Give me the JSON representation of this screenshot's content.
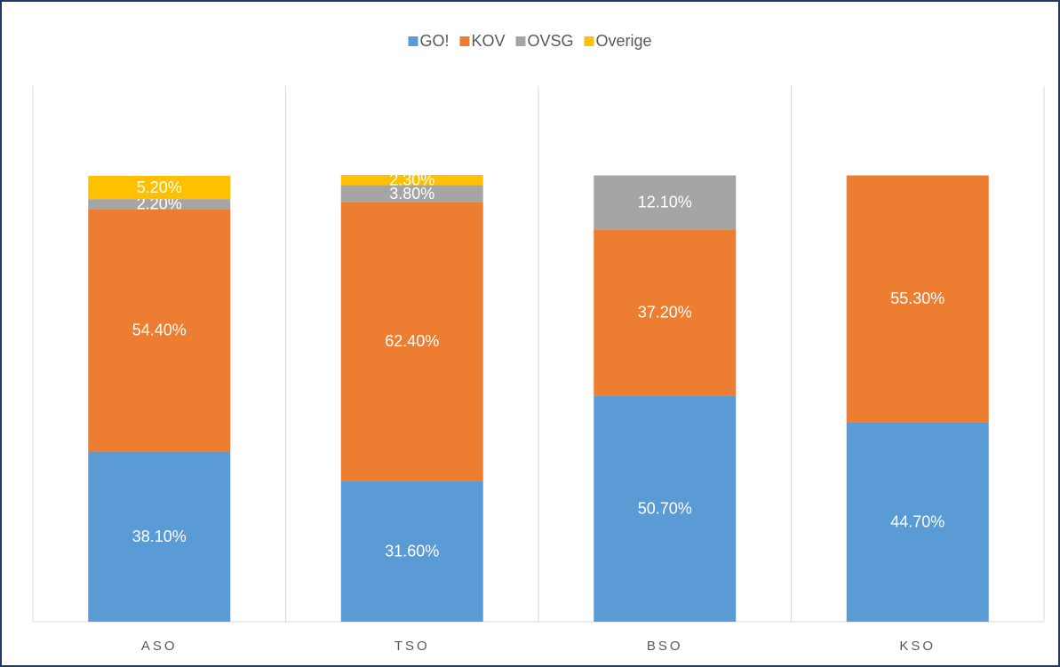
{
  "chart_data": {
    "type": "stacked_bar",
    "categories": [
      "ASO",
      "TSO",
      "BSO",
      "KSO"
    ],
    "series": [
      {
        "name": "GO!",
        "color": "#5b9bd5",
        "values": [
          38.1,
          31.6,
          50.7,
          44.7
        ],
        "value_labels": [
          "38.10%",
          "31.60%",
          "50.70%",
          "44.70%"
        ]
      },
      {
        "name": "KOV",
        "color": "#ed7d31",
        "values": [
          54.4,
          62.4,
          37.2,
          55.3
        ],
        "value_labels": [
          "54.40%",
          "62.40%",
          "37.20%",
          "55.30%"
        ]
      },
      {
        "name": "OVSG",
        "color": "#a5a5a5",
        "values": [
          2.2,
          3.8,
          12.1,
          null
        ],
        "value_labels": [
          "2.20%",
          "3.80%",
          "12.10%",
          null
        ]
      },
      {
        "name": "Overige",
        "color": "#ffc000",
        "values": [
          5.2,
          2.3,
          null,
          null
        ],
        "value_labels": [
          "5.20%",
          "2.30%",
          null,
          null
        ]
      }
    ],
    "ylim": [
      0,
      120
    ],
    "legend": "top"
  }
}
